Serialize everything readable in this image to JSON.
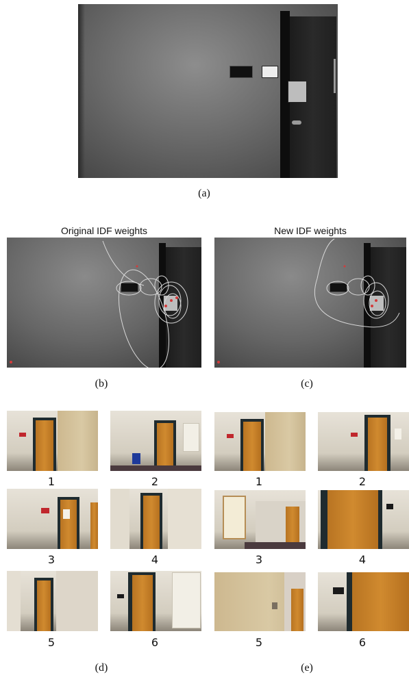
{
  "captions": {
    "a": "(a)",
    "b": "(b)",
    "c": "(c)",
    "d": "(d)",
    "e": "(e)"
  },
  "titles": {
    "original": "Original IDF weights",
    "new": "New IDF weights"
  },
  "panel_d_numbers": [
    "1",
    "2",
    "3",
    "4",
    "5",
    "6"
  ],
  "panel_e_numbers": [
    "1",
    "2",
    "3",
    "4",
    "5",
    "6"
  ]
}
